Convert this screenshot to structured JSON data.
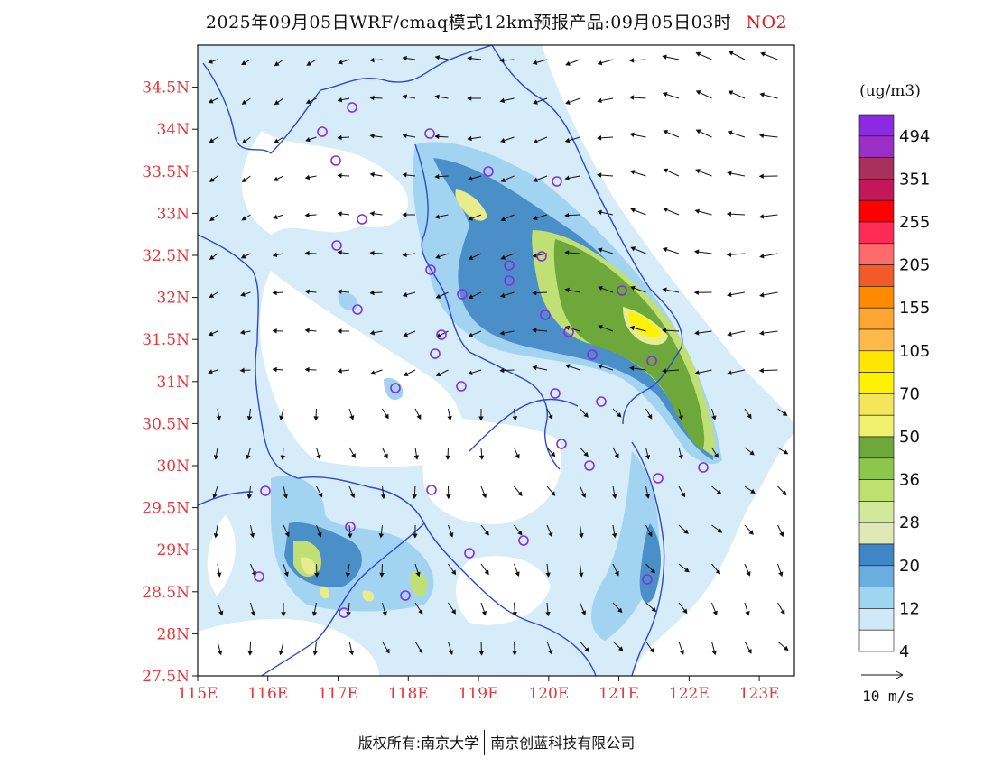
{
  "header": {
    "title": "2025年09月05日WRF/cmaq模式12km预报产品:09月05日03时",
    "pollutant": "NO2"
  },
  "axes": {
    "lat_labels": [
      "34.5N",
      "34N",
      "33.5N",
      "33N",
      "32.5N",
      "32N",
      "31.5N",
      "31N",
      "30.5N",
      "30N",
      "29.5N",
      "29N",
      "28.5N",
      "28N",
      "27.5N"
    ],
    "lat_values": [
      34.5,
      34,
      33.5,
      33,
      32.5,
      32,
      31.5,
      31,
      30.5,
      30,
      29.5,
      29,
      28.5,
      28,
      27.5
    ],
    "lon_labels": [
      "115E",
      "116E",
      "117E",
      "118E",
      "119E",
      "120E",
      "121E",
      "122E",
      "123E"
    ],
    "lon_values": [
      115,
      116,
      117,
      118,
      119,
      120,
      121,
      122,
      123
    ],
    "lon_range": [
      115,
      123.5
    ],
    "lat_range": [
      27.5,
      35
    ],
    "label_color": "#e8343a"
  },
  "legend": {
    "unit": "(ug/m3)",
    "labels": [
      "494",
      "351",
      "255",
      "205",
      "155",
      "105",
      "70",
      "50",
      "36",
      "28",
      "20",
      "12",
      "4"
    ],
    "colors": [
      "#8a2be2",
      "#9a2fc8",
      "#a8305a",
      "#c2185b",
      "#ff0000",
      "#ff2a55",
      "#ff6a6a",
      "#f25a2a",
      "#ff8a00",
      "#ffa530",
      "#ffb84a",
      "#ffe600",
      "#fff200",
      "#f4e65a",
      "#f0f06e",
      "#6fa83a",
      "#8cc64a",
      "#bde070",
      "#d2e89a",
      "#e0e8b4",
      "#3e86c4",
      "#6aaee0",
      "#9ed6f2",
      "#cfe9f8",
      "#ffffff"
    ],
    "wind_ref_label": "10 m/s"
  },
  "footer": {
    "copyright": "版权所有:南京大学",
    "company": "南京创蓝科技有限公司"
  }
}
